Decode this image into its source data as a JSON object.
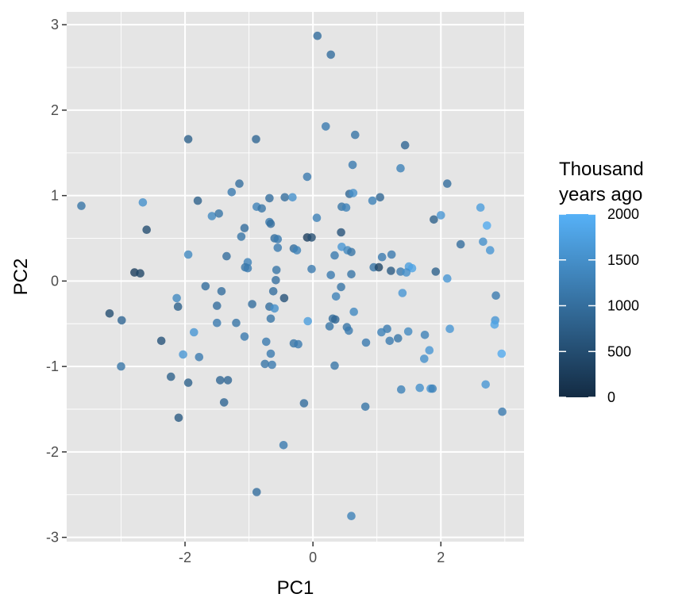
{
  "chart_data": {
    "type": "scatter",
    "title": "",
    "xlabel": "PC1",
    "ylabel": "PC2",
    "xlim": [
      -3.85,
      3.3
    ],
    "ylim": [
      -3.05,
      3.15
    ],
    "xticks": [
      -2,
      0,
      2
    ],
    "yticks": [
      -3,
      -2,
      -1,
      0,
      1,
      2,
      3
    ],
    "xtick_labels": [
      "-2",
      "0",
      "2"
    ],
    "ytick_labels": [
      "-3",
      "-2",
      "-1",
      "0",
      "1",
      "2",
      "3"
    ],
    "grid": true,
    "panel_background": "#e5e5e5",
    "grid_color": "#ffffff",
    "legend": {
      "title_line1": "Thousand",
      "title_line2": "years ago",
      "position": "right",
      "min": 0,
      "max": 2000,
      "ticks": [
        0,
        500,
        1000,
        1500,
        2000
      ],
      "tick_labels": [
        "0",
        "500",
        "1000",
        "1500",
        "2000"
      ],
      "color_low": "#132b43",
      "color_high": "#56b1f7"
    },
    "points": [
      {
        "x": 0.07,
        "y": 2.87,
        "c": 1000
      },
      {
        "x": 0.28,
        "y": 2.65,
        "c": 1000
      },
      {
        "x": 0.2,
        "y": 1.81,
        "c": 1200
      },
      {
        "x": 0.66,
        "y": 1.71,
        "c": 1100
      },
      {
        "x": 1.44,
        "y": 1.59,
        "c": 900
      },
      {
        "x": -1.95,
        "y": 1.66,
        "c": 800
      },
      {
        "x": -0.89,
        "y": 1.66,
        "c": 900
      },
      {
        "x": 0.62,
        "y": 1.36,
        "c": 1200
      },
      {
        "x": 1.37,
        "y": 1.32,
        "c": 1300
      },
      {
        "x": -0.09,
        "y": 1.22,
        "c": 1200
      },
      {
        "x": -1.15,
        "y": 1.14,
        "c": 1000
      },
      {
        "x": 2.1,
        "y": 1.14,
        "c": 1000
      },
      {
        "x": -1.27,
        "y": 1.04,
        "c": 1200
      },
      {
        "x": 0.57,
        "y": 1.02,
        "c": 900
      },
      {
        "x": 0.63,
        "y": 1.03,
        "c": 1500
      },
      {
        "x": -0.68,
        "y": 0.97,
        "c": 1000
      },
      {
        "x": -0.44,
        "y": 0.98,
        "c": 1000
      },
      {
        "x": -0.32,
        "y": 0.98,
        "c": 1500
      },
      {
        "x": 0.93,
        "y": 0.94,
        "c": 1300
      },
      {
        "x": 1.05,
        "y": 0.98,
        "c": 900
      },
      {
        "x": -3.62,
        "y": 0.88,
        "c": 1100
      },
      {
        "x": -2.66,
        "y": 0.92,
        "c": 1500
      },
      {
        "x": -1.8,
        "y": 0.94,
        "c": 800
      },
      {
        "x": -0.88,
        "y": 0.87,
        "c": 1300
      },
      {
        "x": -0.8,
        "y": 0.85,
        "c": 1100
      },
      {
        "x": 0.45,
        "y": 0.87,
        "c": 1100
      },
      {
        "x": 0.52,
        "y": 0.86,
        "c": 1300
      },
      {
        "x": -1.58,
        "y": 0.76,
        "c": 1400
      },
      {
        "x": -1.47,
        "y": 0.79,
        "c": 1100
      },
      {
        "x": 0.06,
        "y": 0.74,
        "c": 1300
      },
      {
        "x": 1.89,
        "y": 0.72,
        "c": 800
      },
      {
        "x": 2.0,
        "y": 0.77,
        "c": 1600
      },
      {
        "x": 2.62,
        "y": 0.86,
        "c": 1700
      },
      {
        "x": -0.68,
        "y": 0.69,
        "c": 1200
      },
      {
        "x": -0.66,
        "y": 0.67,
        "c": 1000
      },
      {
        "x": 2.72,
        "y": 0.65,
        "c": 1900
      },
      {
        "x": -2.6,
        "y": 0.6,
        "c": 500
      },
      {
        "x": -1.07,
        "y": 0.62,
        "c": 1000
      },
      {
        "x": -0.6,
        "y": 0.5,
        "c": 1000
      },
      {
        "x": -0.55,
        "y": 0.49,
        "c": 1200
      },
      {
        "x": -0.09,
        "y": 0.51,
        "c": 300
      },
      {
        "x": -0.02,
        "y": 0.51,
        "c": 500
      },
      {
        "x": 0.44,
        "y": 0.57,
        "c": 600
      },
      {
        "x": -1.12,
        "y": 0.52,
        "c": 1100
      },
      {
        "x": 2.31,
        "y": 0.43,
        "c": 1000
      },
      {
        "x": 2.66,
        "y": 0.46,
        "c": 1500
      },
      {
        "x": 2.77,
        "y": 0.36,
        "c": 1600
      },
      {
        "x": -0.55,
        "y": 0.39,
        "c": 1200
      },
      {
        "x": -0.3,
        "y": 0.38,
        "c": 1000
      },
      {
        "x": -0.25,
        "y": 0.36,
        "c": 1300
      },
      {
        "x": 0.45,
        "y": 0.4,
        "c": 1600
      },
      {
        "x": 0.54,
        "y": 0.36,
        "c": 1400
      },
      {
        "x": 0.6,
        "y": 0.34,
        "c": 1100
      },
      {
        "x": -1.95,
        "y": 0.31,
        "c": 1400
      },
      {
        "x": -1.35,
        "y": 0.29,
        "c": 1000
      },
      {
        "x": 0.34,
        "y": 0.3,
        "c": 1200
      },
      {
        "x": 1.08,
        "y": 0.28,
        "c": 1200
      },
      {
        "x": 1.23,
        "y": 0.31,
        "c": 1200
      },
      {
        "x": -1.02,
        "y": 0.22,
        "c": 1300
      },
      {
        "x": -1.06,
        "y": 0.16,
        "c": 1100
      },
      {
        "x": -1.02,
        "y": 0.15,
        "c": 1200
      },
      {
        "x": 0.95,
        "y": 0.16,
        "c": 1100
      },
      {
        "x": 1.03,
        "y": 0.16,
        "c": 400
      },
      {
        "x": 1.5,
        "y": 0.17,
        "c": 1700
      },
      {
        "x": 1.55,
        "y": 0.15,
        "c": 1800
      },
      {
        "x": -0.57,
        "y": 0.13,
        "c": 1100
      },
      {
        "x": -0.02,
        "y": 0.14,
        "c": 1200
      },
      {
        "x": 1.22,
        "y": 0.12,
        "c": 700
      },
      {
        "x": 1.37,
        "y": 0.11,
        "c": 1200
      },
      {
        "x": 1.46,
        "y": 0.1,
        "c": 1500
      },
      {
        "x": 1.92,
        "y": 0.11,
        "c": 800
      },
      {
        "x": -2.79,
        "y": 0.1,
        "c": 300
      },
      {
        "x": -2.7,
        "y": 0.09,
        "c": 400
      },
      {
        "x": -0.58,
        "y": 0.01,
        "c": 1000
      },
      {
        "x": 0.28,
        "y": 0.07,
        "c": 1200
      },
      {
        "x": 0.6,
        "y": 0.08,
        "c": 1100
      },
      {
        "x": 2.1,
        "y": 0.03,
        "c": 1600
      },
      {
        "x": -1.68,
        "y": -0.06,
        "c": 1000
      },
      {
        "x": -1.43,
        "y": -0.12,
        "c": 1000
      },
      {
        "x": 0.44,
        "y": -0.07,
        "c": 1100
      },
      {
        "x": -0.62,
        "y": -0.12,
        "c": 1000
      },
      {
        "x": 1.4,
        "y": -0.14,
        "c": 1600
      },
      {
        "x": 2.86,
        "y": -0.17,
        "c": 1200
      },
      {
        "x": -2.13,
        "y": -0.2,
        "c": 1400
      },
      {
        "x": -0.45,
        "y": -0.2,
        "c": 600
      },
      {
        "x": 0.36,
        "y": -0.18,
        "c": 1300
      },
      {
        "x": -0.95,
        "y": -0.27,
        "c": 1000
      },
      {
        "x": -1.5,
        "y": -0.29,
        "c": 1000
      },
      {
        "x": -2.11,
        "y": -0.3,
        "c": 800
      },
      {
        "x": -0.68,
        "y": -0.3,
        "c": 1000
      },
      {
        "x": -0.6,
        "y": -0.32,
        "c": 1500
      },
      {
        "x": 0.64,
        "y": -0.36,
        "c": 1400
      },
      {
        "x": -3.18,
        "y": -0.38,
        "c": 500
      },
      {
        "x": -2.99,
        "y": -0.46,
        "c": 900
      },
      {
        "x": -0.66,
        "y": -0.44,
        "c": 1100
      },
      {
        "x": 0.31,
        "y": -0.44,
        "c": 1000
      },
      {
        "x": 0.35,
        "y": -0.45,
        "c": 900
      },
      {
        "x": -0.08,
        "y": -0.47,
        "c": 1700
      },
      {
        "x": 2.85,
        "y": -0.46,
        "c": 1600
      },
      {
        "x": 2.84,
        "y": -0.51,
        "c": 1800
      },
      {
        "x": -1.5,
        "y": -0.49,
        "c": 1200
      },
      {
        "x": -1.2,
        "y": -0.49,
        "c": 1100
      },
      {
        "x": 0.26,
        "y": -0.53,
        "c": 1100
      },
      {
        "x": 0.53,
        "y": -0.54,
        "c": 1100
      },
      {
        "x": 0.56,
        "y": -0.58,
        "c": 1200
      },
      {
        "x": 1.16,
        "y": -0.56,
        "c": 1200
      },
      {
        "x": 1.07,
        "y": -0.6,
        "c": 1300
      },
      {
        "x": 1.49,
        "y": -0.59,
        "c": 1400
      },
      {
        "x": 2.14,
        "y": -0.56,
        "c": 1600
      },
      {
        "x": -1.86,
        "y": -0.6,
        "c": 1600
      },
      {
        "x": -1.07,
        "y": -0.65,
        "c": 1200
      },
      {
        "x": -0.73,
        "y": -0.71,
        "c": 1200
      },
      {
        "x": 1.75,
        "y": -0.63,
        "c": 1300
      },
      {
        "x": 0.83,
        "y": -0.72,
        "c": 1200
      },
      {
        "x": 1.2,
        "y": -0.7,
        "c": 1200
      },
      {
        "x": 1.33,
        "y": -0.67,
        "c": 1100
      },
      {
        "x": -2.37,
        "y": -0.7,
        "c": 600
      },
      {
        "x": -0.3,
        "y": -0.73,
        "c": 1100
      },
      {
        "x": -0.23,
        "y": -0.74,
        "c": 1200
      },
      {
        "x": 1.82,
        "y": -0.81,
        "c": 1600
      },
      {
        "x": -2.03,
        "y": -0.86,
        "c": 1600
      },
      {
        "x": -0.66,
        "y": -0.85,
        "c": 1200
      },
      {
        "x": -1.78,
        "y": -0.89,
        "c": 1200
      },
      {
        "x": 1.74,
        "y": -0.91,
        "c": 1500
      },
      {
        "x": 2.95,
        "y": -0.85,
        "c": 1900
      },
      {
        "x": -0.75,
        "y": -0.97,
        "c": 1100
      },
      {
        "x": -0.64,
        "y": -0.98,
        "c": 1200
      },
      {
        "x": 0.34,
        "y": -0.99,
        "c": 1100
      },
      {
        "x": -3.0,
        "y": -1.0,
        "c": 1100
      },
      {
        "x": -2.22,
        "y": -1.12,
        "c": 800
      },
      {
        "x": -1.95,
        "y": -1.19,
        "c": 800
      },
      {
        "x": -1.45,
        "y": -1.16,
        "c": 900
      },
      {
        "x": -1.33,
        "y": -1.16,
        "c": 900
      },
      {
        "x": 2.7,
        "y": -1.21,
        "c": 1600
      },
      {
        "x": 1.67,
        "y": -1.25,
        "c": 1500
      },
      {
        "x": 1.84,
        "y": -1.26,
        "c": 1600
      },
      {
        "x": 1.87,
        "y": -1.26,
        "c": 1300
      },
      {
        "x": 1.38,
        "y": -1.27,
        "c": 1300
      },
      {
        "x": -1.39,
        "y": -1.42,
        "c": 900
      },
      {
        "x": -0.14,
        "y": -1.43,
        "c": 1000
      },
      {
        "x": 0.82,
        "y": -1.47,
        "c": 1100
      },
      {
        "x": 2.96,
        "y": -1.53,
        "c": 1200
      },
      {
        "x": -2.1,
        "y": -1.6,
        "c": 700
      },
      {
        "x": -0.46,
        "y": -1.92,
        "c": 1200
      },
      {
        "x": -0.88,
        "y": -2.47,
        "c": 1000
      },
      {
        "x": 0.6,
        "y": -2.75,
        "c": 1300
      }
    ]
  }
}
